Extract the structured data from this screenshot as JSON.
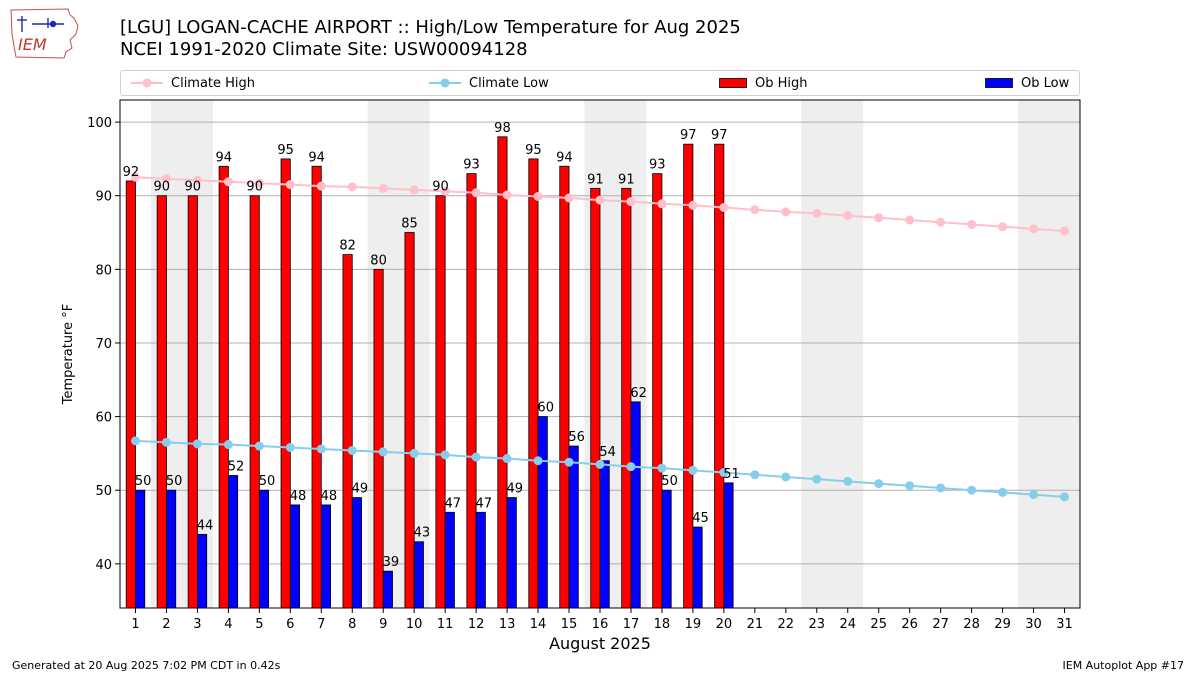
{
  "logo": {
    "text": "IEM"
  },
  "title": {
    "line1": "[LGU] LOGAN-CACHE AIRPORT :: High/Low Temperature for Aug 2025",
    "line2": "NCEI 1991-2020 Climate Site: USW00094128"
  },
  "legend": [
    {
      "label": "Climate High",
      "kind": "line",
      "color": "#ffc0cb"
    },
    {
      "label": "Climate Low",
      "kind": "line",
      "color": "#87ceeb"
    },
    {
      "label": "Ob High",
      "kind": "bar",
      "color": "#ff0000"
    },
    {
      "label": "Ob Low",
      "kind": "bar",
      "color": "#0000ff"
    }
  ],
  "footer": {
    "left": "Generated at 20 Aug 2025 7:02 PM CDT in 0.42s",
    "right": "IEM Autoplot App #17"
  },
  "chart_data": {
    "type": "bar",
    "xlabel": "August 2025",
    "ylabel": "Temperature °F",
    "ylim": [
      34,
      103
    ],
    "xlim": [
      0.5,
      31.5
    ],
    "yticks": [
      40,
      50,
      60,
      70,
      80,
      90,
      100
    ],
    "grid": "horizontal",
    "legend_position": "top",
    "weekend_shaded_days": [
      2,
      3,
      9,
      10,
      16,
      17,
      23,
      24,
      30,
      31
    ],
    "days": [
      1,
      2,
      3,
      4,
      5,
      6,
      7,
      8,
      9,
      10,
      11,
      12,
      13,
      14,
      15,
      16,
      17,
      18,
      19,
      20,
      21,
      22,
      23,
      24,
      25,
      26,
      27,
      28,
      29,
      30,
      31
    ],
    "series": [
      {
        "name": "Ob High",
        "kind": "bar",
        "color": "#ff0000",
        "values": [
          92,
          90,
          90,
          94,
          90,
          95,
          94,
          82,
          80,
          85,
          90,
          93,
          98,
          95,
          94,
          91,
          91,
          93,
          97,
          97
        ]
      },
      {
        "name": "Ob Low",
        "kind": "bar",
        "color": "#0000ff",
        "values": [
          50,
          50,
          44,
          52,
          50,
          48,
          48,
          49,
          39,
          43,
          47,
          47,
          49,
          60,
          56,
          54,
          62,
          50,
          45,
          51
        ]
      },
      {
        "name": "Climate High",
        "kind": "line",
        "color": "#ffc0cb",
        "values": [
          92.5,
          92.3,
          92.1,
          91.9,
          91.7,
          91.5,
          91.3,
          91.2,
          91.0,
          90.8,
          90.6,
          90.4,
          90.1,
          89.9,
          89.7,
          89.4,
          89.2,
          88.9,
          88.7,
          88.4,
          88.1,
          87.8,
          87.6,
          87.3,
          87.0,
          86.7,
          86.4,
          86.1,
          85.8,
          85.5,
          85.2
        ]
      },
      {
        "name": "Climate Low",
        "kind": "line",
        "color": "#87ceeb",
        "values": [
          56.7,
          56.5,
          56.3,
          56.2,
          56.0,
          55.8,
          55.6,
          55.4,
          55.2,
          55.0,
          54.8,
          54.5,
          54.3,
          54.0,
          53.8,
          53.5,
          53.2,
          53.0,
          52.7,
          52.4,
          52.1,
          51.8,
          51.5,
          51.2,
          50.9,
          50.6,
          50.3,
          50.0,
          49.7,
          49.4,
          49.1
        ]
      }
    ]
  }
}
